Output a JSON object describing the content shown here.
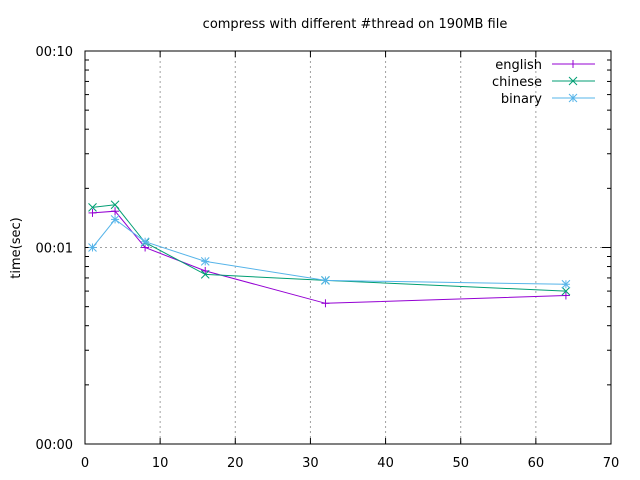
{
  "chart_data": {
    "type": "line",
    "title": "compress with different #thread on 190MB file",
    "xlabel": "",
    "ylabel": "time(sec)",
    "xlim": [
      0,
      70
    ],
    "y_scale": "log",
    "ylim": [
      0.001,
      0.1
    ],
    "x_ticks": [
      0,
      10,
      20,
      30,
      40,
      50,
      60,
      70
    ],
    "y_ticks": [
      {
        "value": 0.001,
        "label": "00:00"
      },
      {
        "value": 0.01,
        "label": "00:01"
      },
      {
        "value": 0.1,
        "label": "00:10"
      }
    ],
    "grid": true,
    "legend_position": "top-right",
    "series": [
      {
        "name": "english",
        "color": "#9400d3",
        "marker": "plus",
        "x": [
          1,
          4,
          8,
          16,
          32,
          64
        ],
        "y": [
          0.015,
          0.0153,
          0.01,
          0.0076,
          0.0052,
          0.0057
        ]
      },
      {
        "name": "chinese",
        "color": "#009e73",
        "marker": "cross",
        "x": [
          1,
          4,
          8,
          16,
          32,
          64
        ],
        "y": [
          0.016,
          0.0165,
          0.0106,
          0.0073,
          0.0068,
          0.006
        ]
      },
      {
        "name": "binary",
        "color": "#56b4e9",
        "marker": "star",
        "x": [
          1,
          4,
          8,
          16,
          32,
          64
        ],
        "y": [
          0.01,
          0.0139,
          0.0107,
          0.0085,
          0.0068,
          0.0065
        ]
      }
    ]
  }
}
